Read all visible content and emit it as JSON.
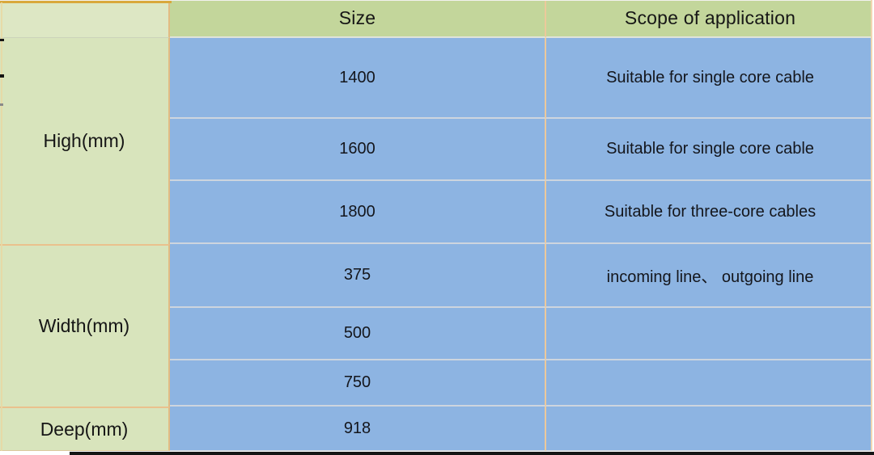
{
  "table": {
    "header": {
      "size": "Size",
      "scope": "Scope of application"
    },
    "row_groups": [
      {
        "label": "High(mm)",
        "rows": [
          {
            "size": "1400",
            "scope": "Suitable for single core cable"
          },
          {
            "size": "1600",
            "scope": "Suitable for single core cable"
          },
          {
            "size": "1800",
            "scope": "Suitable for three-core cables"
          }
        ]
      },
      {
        "label": "Width(mm)",
        "rows": [
          {
            "size": "375",
            "scope": "incoming line、 outgoing line"
          },
          {
            "size": "500",
            "scope": ""
          },
          {
            "size": "750",
            "scope": ""
          }
        ]
      },
      {
        "label": "Deep(mm)",
        "rows": [
          {
            "size": "918",
            "scope": ""
          }
        ]
      }
    ]
  },
  "colors": {
    "header_green": "#c3d69b",
    "corner_green": "#dde7c4",
    "cell_green": "#d8e4bc",
    "cell_blue": "#8db4e2",
    "divider_peach": "#e3bb82",
    "divider_light_peach": "#ecc99b",
    "row_divider_gray": "#cdd5de",
    "top_bar_gold": "#d9a83c",
    "text_dark": "#161616"
  }
}
